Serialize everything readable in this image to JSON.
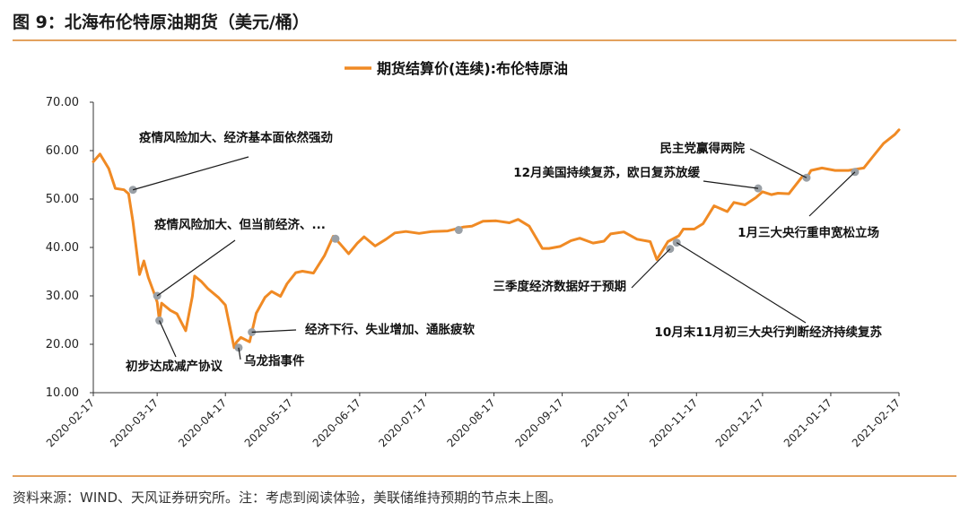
{
  "header": {
    "title": "图 9：北海布伦特原油期货（美元/桶）"
  },
  "footer": {
    "source": "资料来源：WIND、天风证券研究所。注：考虑到阅读体验，美联储维持预期的节点未上图。"
  },
  "colors": {
    "series": "#f08a24",
    "marker": "#9aa0a6",
    "rule": "#e3a15e",
    "axis": "#333333"
  },
  "chart_data": {
    "type": "line",
    "legend": {
      "label": "期货结算价(连续):布伦特原油",
      "position": "top-center"
    },
    "ylim": [
      10,
      70
    ],
    "yticks": [
      "10.00",
      "20.00",
      "30.00",
      "40.00",
      "50.00",
      "60.00",
      "70.00"
    ],
    "xlim": [
      "2020-02-17",
      "2021-02-17"
    ],
    "xticks": [
      "2020-02-17",
      "2020-03-17",
      "2020-04-17",
      "2020-05-17",
      "2020-06-17",
      "2020-07-17",
      "2020-08-17",
      "2020-09-17",
      "2020-10-17",
      "2020-11-17",
      "2020-12-17",
      "2021-01-17",
      "2021-02-17"
    ],
    "series": [
      {
        "x": [
          "2020-02-17",
          "2020-02-20",
          "2020-02-24",
          "2020-02-27",
          "2020-03-02",
          "2020-03-04",
          "2020-03-06",
          "2020-03-09",
          "2020-03-11",
          "2020-03-13",
          "2020-03-16",
          "2020-03-17",
          "2020-03-18",
          "2020-03-19",
          "2020-03-23",
          "2020-03-26",
          "2020-03-30",
          "2020-04-02",
          "2020-04-03",
          "2020-04-06",
          "2020-04-09",
          "2020-04-14",
          "2020-04-17",
          "2020-04-21",
          "2020-04-22",
          "2020-04-24",
          "2020-04-28",
          "2020-05-01",
          "2020-05-05",
          "2020-05-08",
          "2020-05-12",
          "2020-05-15",
          "2020-05-19",
          "2020-05-22",
          "2020-05-27",
          "2020-06-01",
          "2020-06-05",
          "2020-06-08",
          "2020-06-12",
          "2020-06-16",
          "2020-06-19",
          "2020-06-24",
          "2020-06-29",
          "2020-07-03",
          "2020-07-08",
          "2020-07-14",
          "2020-07-20",
          "2020-07-27",
          "2020-08-03",
          "2020-08-07",
          "2020-08-12",
          "2020-08-18",
          "2020-08-24",
          "2020-08-28",
          "2020-09-02",
          "2020-09-08",
          "2020-09-11",
          "2020-09-16",
          "2020-09-21",
          "2020-09-25",
          "2020-10-01",
          "2020-10-06",
          "2020-10-09",
          "2020-10-15",
          "2020-10-21",
          "2020-10-27",
          "2020-10-30",
          "2020-11-02",
          "2020-11-04",
          "2020-11-09",
          "2020-11-11",
          "2020-11-16",
          "2020-11-20",
          "2020-11-25",
          "2020-12-01",
          "2020-12-04",
          "2020-12-09",
          "2020-12-14",
          "2020-12-17",
          "2020-12-21",
          "2020-12-24",
          "2020-12-29",
          "2021-01-04",
          "2021-01-06",
          "2021-01-08",
          "2021-01-13",
          "2021-01-19",
          "2021-01-25",
          "2021-02-01",
          "2021-02-05",
          "2021-02-10",
          "2021-02-15",
          "2021-02-17"
        ],
        "y": [
          57.7,
          59.3,
          56.3,
          52.2,
          51.9,
          51.1,
          45.3,
          34.4,
          37.2,
          33.8,
          30.1,
          28.7,
          24.9,
          28.5,
          27.0,
          26.3,
          22.8,
          29.9,
          34.1,
          33.0,
          31.5,
          29.6,
          28.1,
          19.3,
          20.4,
          21.4,
          20.5,
          26.4,
          29.7,
          30.9,
          29.9,
          32.5,
          34.8,
          35.1,
          34.7,
          38.3,
          42.3,
          40.8,
          38.7,
          40.9,
          42.2,
          40.3,
          41.7,
          43.0,
          43.3,
          42.9,
          43.3,
          43.4,
          44.2,
          44.4,
          45.4,
          45.5,
          45.1,
          45.8,
          44.4,
          39.8,
          39.8,
          40.2,
          41.4,
          41.9,
          40.9,
          41.3,
          42.8,
          43.2,
          41.7,
          41.2,
          37.5,
          39.7,
          41.2,
          42.4,
          43.8,
          43.8,
          44.9,
          48.6,
          47.4,
          49.3,
          48.8,
          50.3,
          51.5,
          50.9,
          51.2,
          51.1,
          54.6,
          54.3,
          55.9,
          56.4,
          55.9,
          55.9,
          56.4,
          58.7,
          61.5,
          63.3,
          64.3
        ]
      }
    ],
    "markers": [
      {
        "x": "2020-03-06",
        "y": 51.9
      },
      {
        "x": "2020-03-17",
        "y": 30.0
      },
      {
        "x": "2020-03-18",
        "y": 24.9
      },
      {
        "x": "2020-04-23",
        "y": 19.3
      },
      {
        "x": "2020-04-29",
        "y": 22.5
      },
      {
        "x": "2020-06-06",
        "y": 41.8
      },
      {
        "x": "2020-08-01",
        "y": 43.6
      },
      {
        "x": "2020-11-05",
        "y": 39.7
      },
      {
        "x": "2020-11-08",
        "y": 41.0
      },
      {
        "x": "2020-12-15",
        "y": 52.2
      },
      {
        "x": "2021-01-06",
        "y": 54.4
      },
      {
        "x": "2021-01-28",
        "y": 55.6
      }
    ],
    "annotations": [
      {
        "text": "疫情风险加大、经济基本面依然强劲",
        "x": "2020-03-06",
        "y": 51.9
      },
      {
        "text": "疫情风险加大、但当前经济、...",
        "x": "2020-03-17",
        "y": 30.0
      },
      {
        "text": "初步达成减产协议",
        "x": "2020-03-18",
        "y": 24.9
      },
      {
        "text": "乌龙指事件",
        "x": "2020-04-23",
        "y": 19.3
      },
      {
        "text": "经济下行、失业增加、通胀疲软",
        "x": "2020-04-29",
        "y": 22.5
      },
      {
        "text": "三季度经济数据好于预期",
        "x": "2020-11-05",
        "y": 39.7
      },
      {
        "text": "10月末11月初三大央行判断经济持续复苏",
        "x": "2020-11-08",
        "y": 41.0
      },
      {
        "text": "12月美国持续复苏，欧日复苏放缓",
        "x": "2020-12-15",
        "y": 52.2
      },
      {
        "text": "民主党赢得两院",
        "x": "2021-01-06",
        "y": 54.4
      },
      {
        "text": "1月三大央行重申宽松立场",
        "x": "2021-01-28",
        "y": 55.6
      }
    ]
  }
}
